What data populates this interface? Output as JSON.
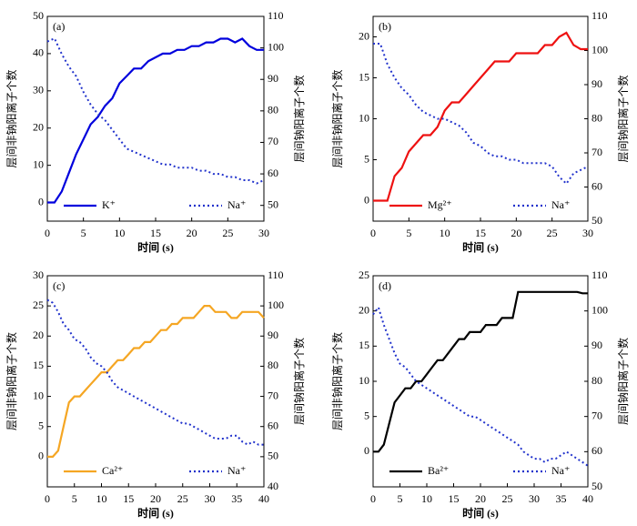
{
  "chart_data": [
    {
      "type": "line",
      "label": "(a)",
      "xlabel": "时间 (s)",
      "ylabel": "层间非钠阳离子个数",
      "y2label": "层间钠阳离子个数",
      "xlim": [
        0,
        30
      ],
      "xticks": [
        0,
        5,
        10,
        15,
        20,
        25,
        30
      ],
      "ylim": [
        -5,
        50
      ],
      "yticks": [
        0,
        10,
        20,
        30,
        40,
        50
      ],
      "y2lim": [
        45,
        110
      ],
      "y2ticks": [
        50,
        60,
        70,
        80,
        90,
        100,
        110
      ],
      "legend": "lower",
      "x": [
        0,
        1,
        2,
        3,
        4,
        5,
        6,
        7,
        8,
        9,
        10,
        11,
        12,
        13,
        14,
        15,
        16,
        17,
        18,
        19,
        20,
        21,
        22,
        23,
        24,
        25,
        26,
        27,
        28,
        29,
        30
      ],
      "series": [
        {
          "name": "K⁺",
          "color": "#0000dd",
          "style": "solid",
          "values": [
            0,
            0,
            3,
            8,
            13,
            17,
            21,
            23,
            26,
            28,
            32,
            34,
            36,
            36,
            38,
            39,
            40,
            40,
            41,
            41,
            42,
            42,
            43,
            43,
            44,
            44,
            43,
            44,
            42,
            41,
            41
          ]
        },
        {
          "name": "Na⁺",
          "color": "#2233cc",
          "style": "dotted",
          "axis": "y2",
          "values": [
            102,
            103,
            98,
            94,
            91,
            86,
            82,
            79,
            77,
            74,
            71,
            68,
            67,
            66,
            65,
            64,
            63,
            63,
            62,
            62,
            62,
            61,
            61,
            60,
            60,
            59,
            59,
            58,
            58,
            57,
            58
          ]
        }
      ]
    },
    {
      "type": "line",
      "label": "(b)",
      "xlabel": "时间 (s)",
      "ylabel": "层间非钠阳离子个数",
      "y2label": "层间钠阳离子个数",
      "xlim": [
        0,
        30
      ],
      "xticks": [
        0,
        5,
        10,
        15,
        20,
        25,
        30
      ],
      "ylim": [
        -2.5,
        22.5
      ],
      "yticks": [
        0,
        5,
        10,
        15,
        20
      ],
      "y2lim": [
        50,
        110
      ],
      "y2ticks": [
        50,
        60,
        70,
        80,
        90,
        100,
        110
      ],
      "legend": "lower",
      "x": [
        0,
        1,
        2,
        3,
        4,
        5,
        6,
        7,
        8,
        9,
        10,
        11,
        12,
        13,
        14,
        15,
        16,
        17,
        18,
        19,
        20,
        21,
        22,
        23,
        24,
        25,
        26,
        27,
        28,
        29,
        30
      ],
      "series": [
        {
          "name": "Mg²⁺",
          "color": "#ee1111",
          "style": "solid",
          "values": [
            0,
            0,
            0,
            3,
            4,
            6,
            7,
            8,
            8,
            9,
            11,
            12,
            12,
            13,
            14,
            15,
            16,
            17,
            17,
            17,
            18,
            18,
            18,
            18,
            19,
            19,
            20,
            20.5,
            19,
            18.5,
            18.5
          ]
        },
        {
          "name": "Na⁺",
          "color": "#2233cc",
          "style": "dotted",
          "axis": "y2",
          "values": [
            102,
            102,
            96,
            92,
            89,
            87,
            84,
            82,
            81,
            80,
            80,
            79,
            78,
            76,
            73,
            72,
            70,
            69,
            69,
            68,
            68,
            67,
            67,
            67,
            67,
            66,
            63,
            61,
            64,
            65,
            66
          ]
        }
      ]
    },
    {
      "type": "line",
      "label": "(c)",
      "xlabel": "时间 (s)",
      "ylabel": "层间非钠阳离子个数",
      "y2label": "层间钠阳离子个数",
      "xlim": [
        0,
        40
      ],
      "xticks": [
        0,
        5,
        10,
        15,
        20,
        25,
        30,
        35,
        40
      ],
      "ylim": [
        -5,
        30
      ],
      "yticks": [
        0,
        5,
        10,
        15,
        20,
        25,
        30
      ],
      "y2lim": [
        40,
        110
      ],
      "y2ticks": [
        40,
        50,
        60,
        70,
        80,
        90,
        100,
        110
      ],
      "legend": "lower",
      "x": [
        0,
        1,
        2,
        3,
        4,
        5,
        6,
        7,
        8,
        9,
        10,
        11,
        12,
        13,
        14,
        15,
        16,
        17,
        18,
        19,
        20,
        21,
        22,
        23,
        24,
        25,
        26,
        27,
        28,
        29,
        30,
        31,
        32,
        33,
        34,
        35,
        36,
        37,
        38,
        39,
        40
      ],
      "series": [
        {
          "name": "Ca²⁺",
          "color": "#f5a623",
          "style": "solid",
          "values": [
            0,
            0,
            1,
            5,
            9,
            10,
            10,
            11,
            12,
            13,
            14,
            14,
            15,
            16,
            16,
            17,
            18,
            18,
            19,
            19,
            20,
            21,
            21,
            22,
            22,
            23,
            23,
            23,
            24,
            25,
            25,
            24,
            24,
            24,
            23,
            23,
            24,
            24,
            24,
            24,
            23
          ]
        },
        {
          "name": "Na⁺",
          "color": "#2233cc",
          "style": "dotted",
          "axis": "y2",
          "values": [
            102,
            101,
            98,
            94,
            92,
            89,
            88,
            86,
            83,
            81,
            80,
            78,
            75,
            73,
            72,
            71,
            70,
            69,
            68,
            67,
            66,
            65,
            64,
            63,
            62,
            61,
            61,
            60,
            59,
            58,
            57,
            56,
            56,
            56,
            57,
            57,
            55,
            54,
            55,
            54,
            54
          ]
        }
      ]
    },
    {
      "type": "line",
      "label": "(d)",
      "xlabel": "时间 (s)",
      "ylabel": "层间非钠阳离子个数",
      "y2label": "层间钠阳离子个数",
      "xlim": [
        0,
        40
      ],
      "xticks": [
        0,
        5,
        10,
        15,
        20,
        25,
        30,
        35,
        40
      ],
      "ylim": [
        -5,
        25
      ],
      "yticks": [
        0,
        5,
        10,
        15,
        20,
        25
      ],
      "y2lim": [
        50,
        110
      ],
      "y2ticks": [
        50,
        60,
        70,
        80,
        90,
        100,
        110
      ],
      "legend": "lower",
      "x": [
        0,
        1,
        2,
        3,
        4,
        5,
        6,
        7,
        8,
        9,
        10,
        11,
        12,
        13,
        14,
        15,
        16,
        17,
        18,
        19,
        20,
        21,
        22,
        23,
        24,
        25,
        26,
        27,
        28,
        29,
        30,
        31,
        32,
        33,
        34,
        35,
        36,
        37,
        38,
        39,
        40
      ],
      "series": [
        {
          "name": "Ba²⁺",
          "color": "#000000",
          "style": "solid",
          "values": [
            0,
            0,
            1,
            4,
            7,
            8,
            9,
            9,
            10,
            10,
            11,
            12,
            13,
            13,
            14,
            15,
            16,
            16,
            17,
            17,
            17,
            18,
            18,
            18,
            19,
            19,
            19,
            22.7,
            22.7,
            22.7,
            22.7,
            22.7,
            22.7,
            22.7,
            22.7,
            22.7,
            22.7,
            22.7,
            22.7,
            22.5,
            22.5
          ]
        },
        {
          "name": "Na⁺",
          "color": "#2233cc",
          "style": "dotted",
          "axis": "y2",
          "values": [
            99,
            101,
            96,
            92,
            88,
            85,
            84,
            82,
            80,
            79,
            78,
            77,
            76,
            75,
            74,
            73,
            72,
            71,
            70,
            70,
            69,
            68,
            67,
            66,
            65,
            64,
            63,
            62,
            60,
            59,
            58,
            58,
            57,
            58,
            58,
            59,
            60,
            59,
            58,
            57,
            56
          ]
        }
      ]
    }
  ]
}
